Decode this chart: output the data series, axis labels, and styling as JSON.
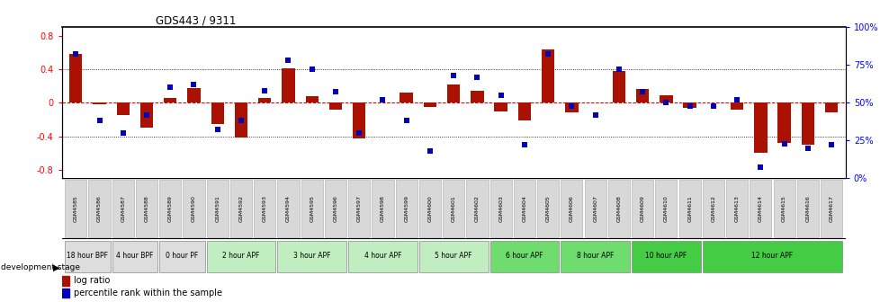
{
  "title": "GDS443 / 9311",
  "samples": [
    "GSM4585",
    "GSM4586",
    "GSM4587",
    "GSM4588",
    "GSM4589",
    "GSM4590",
    "GSM4591",
    "GSM4592",
    "GSM4593",
    "GSM4594",
    "GSM4595",
    "GSM4596",
    "GSM4597",
    "GSM4598",
    "GSM4599",
    "GSM4600",
    "GSM4601",
    "GSM4602",
    "GSM4603",
    "GSM4604",
    "GSM4605",
    "GSM4606",
    "GSM4607",
    "GSM4608",
    "GSM4609",
    "GSM4610",
    "GSM4611",
    "GSM4612",
    "GSM4613",
    "GSM4614",
    "GSM4615",
    "GSM4616",
    "GSM4617"
  ],
  "log_ratio": [
    0.58,
    -0.02,
    -0.15,
    -0.3,
    0.06,
    0.17,
    -0.25,
    -0.42,
    0.06,
    0.41,
    0.08,
    -0.08,
    -0.43,
    0.0,
    0.12,
    -0.05,
    0.22,
    0.14,
    -0.1,
    -0.21,
    0.63,
    -0.12,
    0.0,
    0.38,
    0.16,
    0.09,
    -0.06,
    0.0,
    -0.08,
    -0.6,
    -0.48,
    -0.5,
    -0.12
  ],
  "percentile": [
    82,
    38,
    30,
    42,
    60,
    62,
    32,
    38,
    58,
    78,
    72,
    57,
    30,
    52,
    38,
    18,
    68,
    67,
    55,
    22,
    82,
    48,
    42,
    72,
    57,
    50,
    48,
    48,
    52,
    7,
    23,
    20,
    22
  ],
  "stages": [
    {
      "label": "18 hour BPF",
      "start": 0,
      "end": 2,
      "color": "#dddddd"
    },
    {
      "label": "4 hour BPF",
      "start": 2,
      "end": 4,
      "color": "#dddddd"
    },
    {
      "label": "0 hour PF",
      "start": 4,
      "end": 6,
      "color": "#dddddd"
    },
    {
      "label": "2 hour APF",
      "start": 6,
      "end": 9,
      "color": "#c0eec0"
    },
    {
      "label": "3 hour APF",
      "start": 9,
      "end": 12,
      "color": "#c0eec0"
    },
    {
      "label": "4 hour APF",
      "start": 12,
      "end": 15,
      "color": "#c0eec0"
    },
    {
      "label": "5 hour APF",
      "start": 15,
      "end": 18,
      "color": "#c0eec0"
    },
    {
      "label": "6 hour APF",
      "start": 18,
      "end": 21,
      "color": "#6edd6e"
    },
    {
      "label": "8 hour APF",
      "start": 21,
      "end": 24,
      "color": "#6edd6e"
    },
    {
      "label": "10 hour APF",
      "start": 24,
      "end": 27,
      "color": "#44cc44"
    },
    {
      "label": "12 hour APF",
      "start": 27,
      "end": 33,
      "color": "#44cc44"
    }
  ],
  "bar_color": "#aa1100",
  "dot_color": "#0000bb",
  "zero_line_color": "#cc0000",
  "ylim_left": [
    -0.9,
    0.9
  ],
  "yticks_left": [
    -0.8,
    -0.4,
    0.0,
    0.4,
    0.8
  ],
  "yticks_right": [
    0,
    25,
    50,
    75,
    100
  ],
  "legend_log": "log ratio",
  "legend_pct": "percentile rank within the sample",
  "stage_label": "development stage"
}
